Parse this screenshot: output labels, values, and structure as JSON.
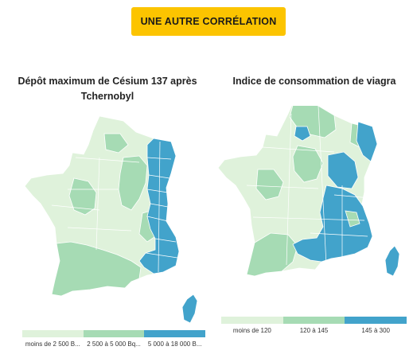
{
  "header": {
    "button_label": "UNE AUTRE CORRÉLATION"
  },
  "colors": {
    "accent": "#fcc400",
    "low": "#dff2db",
    "mid": "#a6dbb4",
    "high": "#42a3cb"
  },
  "maps": [
    {
      "title": "Dépôt maximum de Césium 137 après Tchernobyl",
      "legend": [
        {
          "label": "moins de 2 500 B...",
          "color": "#dff2db"
        },
        {
          "label": "2 500 à 5 000 Bq...",
          "color": "#a6dbb4"
        },
        {
          "label": "5 000 à 18 000 B...",
          "color": "#42a3cb"
        }
      ]
    },
    {
      "title": "Indice de consommation de viagra",
      "legend": [
        {
          "label": "moins de 120",
          "color": "#dff2db"
        },
        {
          "label": "120 à 145",
          "color": "#a6dbb4"
        },
        {
          "label": "145 à 300",
          "color": "#42a3cb"
        }
      ]
    }
  ]
}
